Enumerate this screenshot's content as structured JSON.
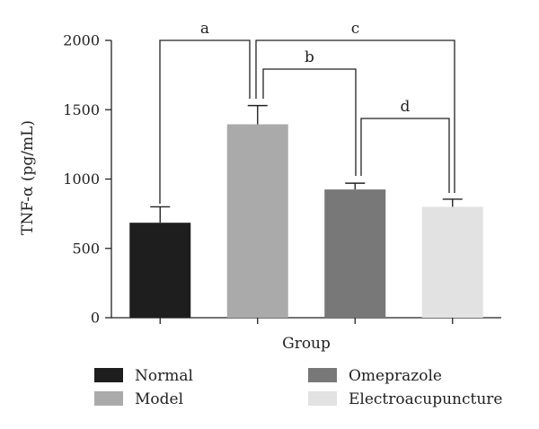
{
  "chart_data": {
    "type": "bar",
    "title": "",
    "xlabel": "Group",
    "ylabel": "TNF-α (pg/mL)",
    "ylim": [
      0,
      2000
    ],
    "yticks": [
      0,
      500,
      1000,
      1500,
      2000
    ],
    "grid": false,
    "legend_position": "bottom",
    "categories": [
      "Normal",
      "Model",
      "Omeprazole",
      "Electroacupuncture"
    ],
    "values": [
      685,
      1395,
      925,
      800
    ],
    "errors": [
      115,
      135,
      45,
      55
    ],
    "colors": [
      "#1e1e1e",
      "#aaaaaa",
      "#787878",
      "#e2e2e2"
    ],
    "significance": [
      {
        "label": "a",
        "from": 0,
        "to": 1
      },
      {
        "label": "b",
        "from": 1,
        "to": 2
      },
      {
        "label": "c",
        "from": 1,
        "to": 3
      },
      {
        "label": "d",
        "from": 2,
        "to": 3
      }
    ],
    "legend": [
      "Normal",
      "Model",
      "Omeprazole",
      "Electroacupuncture"
    ]
  }
}
